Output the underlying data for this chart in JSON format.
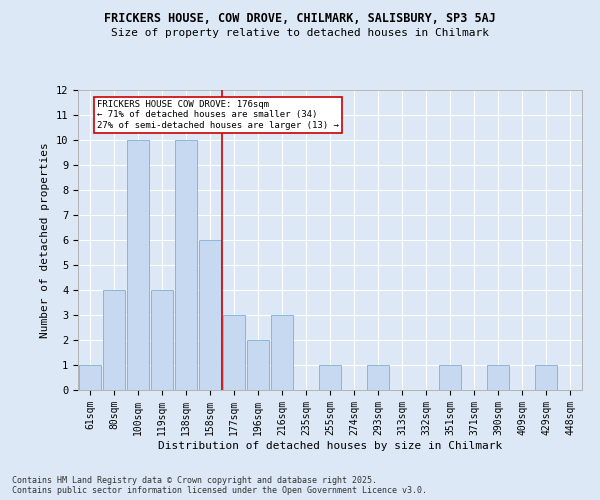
{
  "title_line1": "FRICKERS HOUSE, COW DROVE, CHILMARK, SALISBURY, SP3 5AJ",
  "title_line2": "Size of property relative to detached houses in Chilmark",
  "xlabel": "Distribution of detached houses by size in Chilmark",
  "ylabel": "Number of detached properties",
  "categories": [
    "61sqm",
    "80sqm",
    "100sqm",
    "119sqm",
    "138sqm",
    "158sqm",
    "177sqm",
    "196sqm",
    "216sqm",
    "235sqm",
    "255sqm",
    "274sqm",
    "293sqm",
    "313sqm",
    "332sqm",
    "351sqm",
    "371sqm",
    "390sqm",
    "409sqm",
    "429sqm",
    "448sqm"
  ],
  "values": [
    1,
    4,
    10,
    4,
    10,
    6,
    3,
    2,
    3,
    0,
    1,
    0,
    1,
    0,
    0,
    1,
    0,
    1,
    0,
    1,
    0
  ],
  "bar_color": "#c6d9f0",
  "bar_edge_color": "#7bafd4",
  "ylim": [
    0,
    12
  ],
  "yticks": [
    0,
    1,
    2,
    3,
    4,
    5,
    6,
    7,
    8,
    9,
    10,
    11,
    12
  ],
  "property_line_x": 5.5,
  "annotation_text": "FRICKERS HOUSE COW DROVE: 176sqm\n← 71% of detached houses are smaller (34)\n27% of semi-detached houses are larger (13) →",
  "annotation_box_color": "#ffffff",
  "annotation_box_edge": "#cc0000",
  "line_color": "#cc0000",
  "background_color": "#dce8f5",
  "fig_background_color": "#dce8f5",
  "footer_line1": "Contains HM Land Registry data © Crown copyright and database right 2025.",
  "footer_line2": "Contains public sector information licensed under the Open Government Licence v3.0."
}
